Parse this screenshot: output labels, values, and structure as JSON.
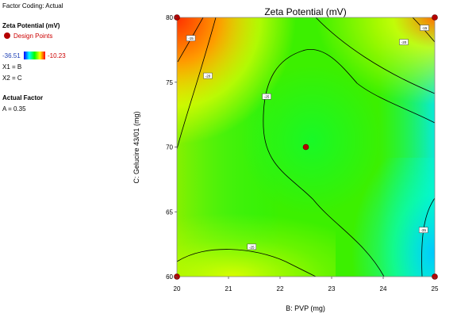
{
  "sidebar": {
    "factor_coding": "Factor Coding: Actual",
    "response_title": "Zeta Potential (mV)",
    "design_points_label": "Design Points",
    "scale_min": "-36.51",
    "scale_max": "-10.23",
    "x1": "X1 = B",
    "x2": "X2 = C",
    "actual_factor_title": "Actual Factor",
    "actual_factor_value": "A = 0.35"
  },
  "colors": {
    "design_point": "#b50000",
    "contour_line": "#000000",
    "scale_low": "#0000ff",
    "scale_high": "#ff0000"
  },
  "chart_data": {
    "type": "heatmap",
    "title": "Zeta Potential (mV)",
    "xlabel": "B: PVP (mg)",
    "ylabel": "C: Gelucire 43/01 (mg)",
    "xlim": [
      20,
      25
    ],
    "ylim": [
      60,
      80
    ],
    "x_ticks": [
      "20",
      "21",
      "22",
      "23",
      "24",
      "25"
    ],
    "y_ticks": [
      "60",
      "65",
      "70",
      "75",
      "80"
    ],
    "color_scale": {
      "min": -36.51,
      "max": -10.23
    },
    "design_points": [
      {
        "x": 20,
        "y": 80
      },
      {
        "x": 25,
        "y": 80
      },
      {
        "x": 22.5,
        "y": 70
      },
      {
        "x": 20,
        "y": 60
      },
      {
        "x": 25,
        "y": 60
      }
    ],
    "contour_labels": [
      {
        "text": "-15",
        "x": 20.27,
        "y": 78.4
      },
      {
        "text": "-20",
        "x": 20.6,
        "y": 75.5
      },
      {
        "text": "-25",
        "x": 21.74,
        "y": 73.9
      },
      {
        "text": "-20",
        "x": 24.4,
        "y": 78.1
      },
      {
        "text": "-15",
        "x": 24.8,
        "y": 79.2
      },
      {
        "text": "-25",
        "x": 21.45,
        "y": 62.3
      },
      {
        "text": "-35",
        "x": 24.78,
        "y": 63.6
      }
    ]
  }
}
